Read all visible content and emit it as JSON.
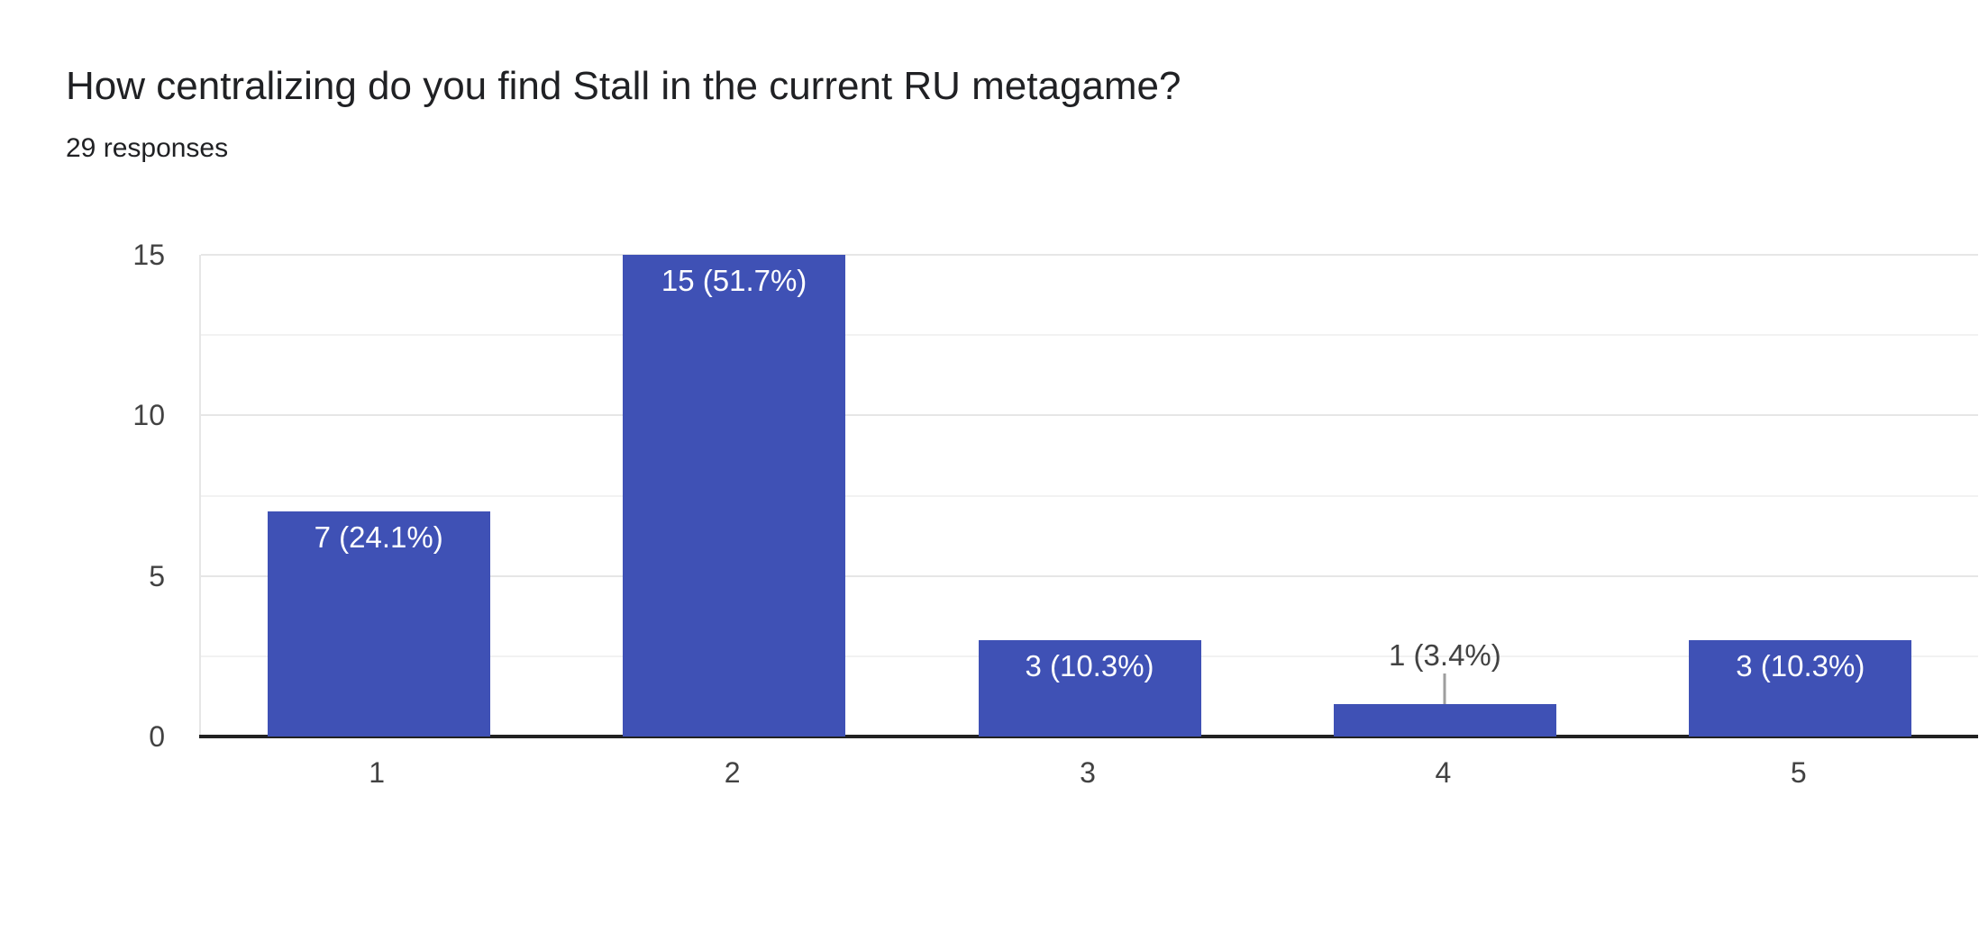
{
  "header": {
    "title": "How centralizing do you find Stall in the current RU metagame?",
    "subtitle": "29 responses"
  },
  "chart_data": {
    "type": "bar",
    "title": "How centralizing do you find Stall in the current RU metagame?",
    "subtitle": "29 responses",
    "total_responses": 29,
    "categories": [
      "1",
      "2",
      "3",
      "4",
      "5"
    ],
    "values": [
      7,
      15,
      3,
      1,
      3
    ],
    "labels": [
      "7 (24.1%)",
      "15 (51.7%)",
      "3 (10.3%)",
      "1 (3.4%)",
      "3 (10.3%)"
    ],
    "percentages": [
      24.1,
      51.7,
      10.3,
      3.4,
      10.3
    ],
    "xlabel": "",
    "ylabel": "",
    "ylim": [
      0,
      15
    ],
    "yticks": [
      0,
      5,
      10,
      15
    ],
    "minor_gridlines": [
      2.5,
      7.5,
      12.5
    ],
    "grid": true,
    "legend": "none",
    "colors": {
      "bar": "#3f51b5",
      "label_inside": "#ffffff",
      "label_outside": "#424242",
      "axis_text": "#424242",
      "title_text": "#202124",
      "gridline_major": "#e6e6e6",
      "gridline_minor": "#f2f2f2",
      "baseline": "#212121",
      "callout_stem": "#9e9e9e",
      "background": "#ffffff"
    }
  }
}
